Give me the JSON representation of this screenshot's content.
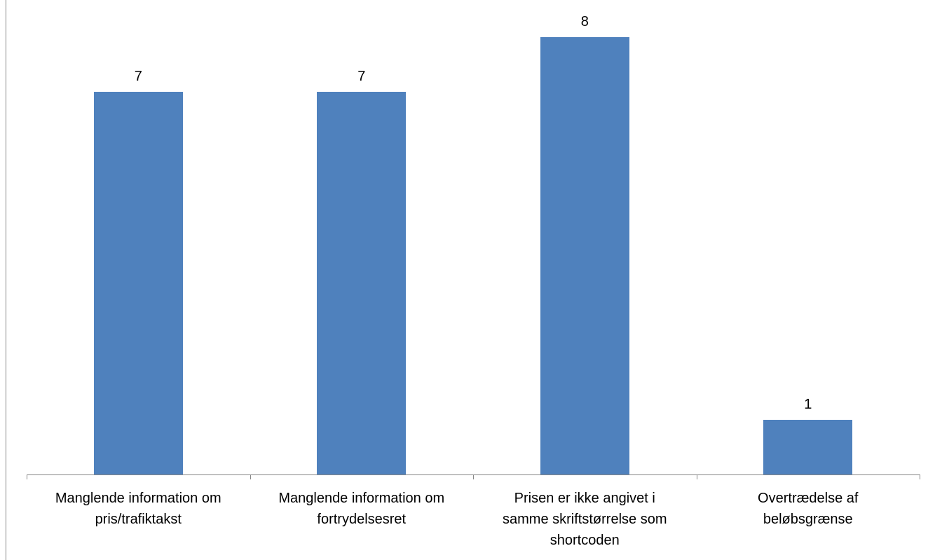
{
  "chart_data": {
    "type": "bar",
    "categories": [
      [
        "Manglende information om",
        "pris/trafiktakst"
      ],
      [
        "Manglende information om",
        "fortrydelsesret"
      ],
      [
        "Prisen er ikke angivet i",
        "samme skriftstørrelse som",
        "shortcoden"
      ],
      [
        "Overtrædelse af",
        "beløbsgrænse"
      ]
    ],
    "values": [
      7,
      7,
      8,
      1
    ],
    "data_labels": [
      "7",
      "7",
      "8",
      "1"
    ],
    "title": "",
    "xlabel": "",
    "ylabel": "",
    "ylim": [
      0,
      8.7
    ],
    "grid": false,
    "legend": "none",
    "bar_color": "#4F81BD",
    "axis_color": "#868686"
  }
}
